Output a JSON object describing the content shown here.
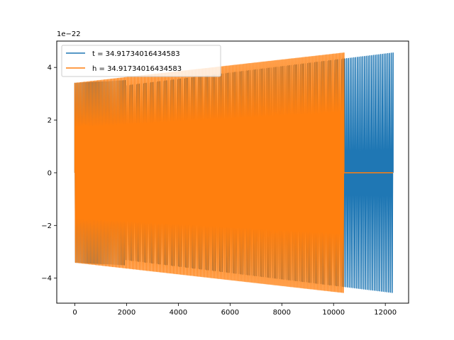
{
  "chart_data": {
    "type": "line",
    "title": "",
    "xlabel": "",
    "ylabel": "",
    "y_offset_text": "1e−22",
    "xlim": [
      -700,
      12900
    ],
    "ylim": [
      -4.95,
      5.0
    ],
    "x_ticks": [
      0,
      2000,
      4000,
      6000,
      8000,
      10000,
      12000
    ],
    "x_tick_labels": [
      "0",
      "2000",
      "4000",
      "6000",
      "8000",
      "10000",
      "12000"
    ],
    "y_ticks": [
      -4,
      -2,
      0,
      2,
      4
    ],
    "y_tick_labels": [
      "−4",
      "−2",
      "0",
      "2",
      "4"
    ],
    "grid": false,
    "legend_position": "upper-left",
    "series": [
      {
        "name": "t = 34.91734016434583",
        "color": "#1f77b4",
        "segments": [
          {
            "x_start": 0,
            "x_end": 1950,
            "amp_start": 3.4,
            "amp_end": 3.5,
            "cycles": 37
          },
          {
            "x_start": 1950,
            "x_end": 12300,
            "amp_start": 3.3,
            "amp_end": 4.55,
            "cycles": 150
          }
        ]
      },
      {
        "name": "h = 34.91734016434583",
        "color": "#ff7f0e",
        "segments": [
          {
            "x_start": 0,
            "x_end": 10400,
            "amp_start": 3.4,
            "amp_end": 4.55,
            "cycles": 190
          },
          {
            "x_start": 10400,
            "x_end": 12300,
            "amp_start": 0,
            "amp_end": 0,
            "cycles": 0
          }
        ]
      }
    ]
  }
}
